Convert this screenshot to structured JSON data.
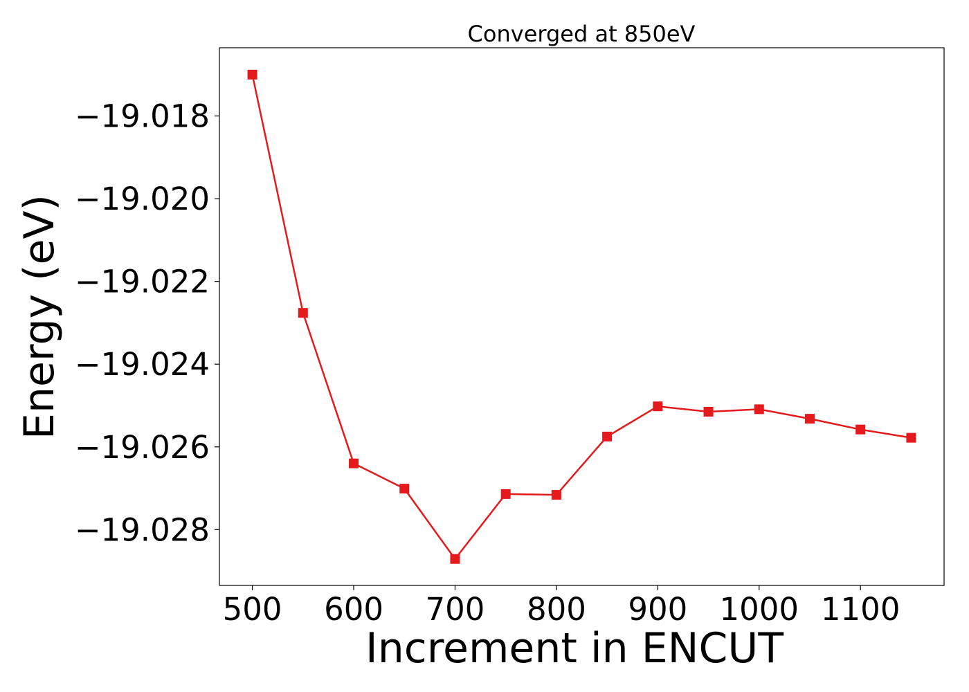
{
  "chart_data": {
    "type": "line",
    "title": "Converged at 850eV",
    "xlabel": "Increment in ENCUT",
    "ylabel": "Energy (eV)",
    "xlim": [
      467.5,
      1182.5
    ],
    "ylim": [
      -19.02935,
      -19.01635
    ],
    "xticks": [
      500,
      600,
      700,
      800,
      900,
      1000,
      1100
    ],
    "yticks": [
      -19.018,
      -19.02,
      -19.022,
      -19.024,
      -19.026,
      -19.028
    ],
    "ytick_labels": [
      "−19.018",
      "−19.020",
      "−19.022",
      "−19.024",
      "−19.026",
      "−19.028"
    ],
    "grid": false,
    "series": [
      {
        "color": "#e41a1c",
        "marker": "square",
        "x": [
          500,
          550,
          600,
          650,
          700,
          750,
          800,
          850,
          900,
          950,
          1000,
          1050,
          1100,
          1150
        ],
        "y": [
          -19.017,
          -19.02276,
          -19.0264,
          -19.02701,
          -19.02871,
          -19.02714,
          -19.02716,
          -19.02575,
          -19.02502,
          -19.02515,
          -19.02509,
          -19.02532,
          -19.02558,
          -19.02578
        ]
      }
    ]
  }
}
